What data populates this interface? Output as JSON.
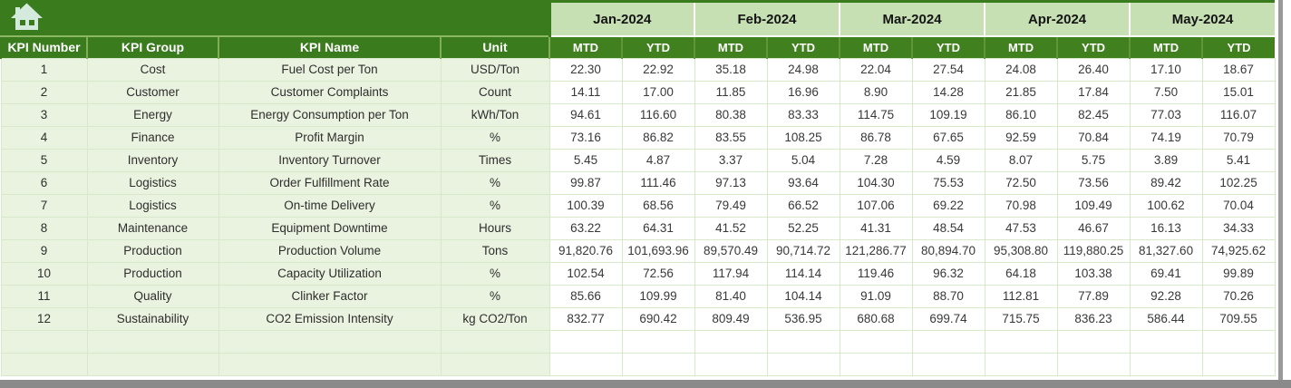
{
  "colors": {
    "header_green": "#3A7B1E",
    "sub_green": "#41801E",
    "month_band_green": "#C6E0B4",
    "row_label_green": "#EAF3E0",
    "grid_green": "#D8E8CB",
    "frame_gray": "#8A8A8A",
    "icon_mint": "#D3EADC"
  },
  "table": {
    "left_headers": [
      "KPI Number",
      "KPI Group",
      "KPI Name",
      "Unit"
    ],
    "months": [
      "Jan-2024",
      "Feb-2024",
      "Mar-2024",
      "Apr-2024",
      "May-2024"
    ],
    "sub_headers": [
      "MTD",
      "YTD"
    ],
    "rows": [
      {
        "number": "1",
        "group": "Cost",
        "name": "Fuel Cost per Ton",
        "unit": "USD/Ton",
        "values": [
          "22.30",
          "22.92",
          "35.18",
          "24.98",
          "22.04",
          "27.54",
          "24.08",
          "26.40",
          "17.10",
          "18.67"
        ]
      },
      {
        "number": "2",
        "group": "Customer",
        "name": "Customer Complaints",
        "unit": "Count",
        "values": [
          "14.11",
          "17.00",
          "11.85",
          "16.96",
          "8.90",
          "14.28",
          "21.85",
          "17.84",
          "7.50",
          "15.01"
        ]
      },
      {
        "number": "3",
        "group": "Energy",
        "name": "Energy Consumption per Ton",
        "unit": "kWh/Ton",
        "values": [
          "94.61",
          "116.60",
          "80.38",
          "83.33",
          "114.75",
          "109.19",
          "86.10",
          "82.45",
          "77.03",
          "116.07"
        ]
      },
      {
        "number": "4",
        "group": "Finance",
        "name": "Profit Margin",
        "unit": "%",
        "values": [
          "73.16",
          "86.82",
          "83.55",
          "108.25",
          "86.78",
          "67.65",
          "92.59",
          "70.84",
          "74.19",
          "70.79"
        ]
      },
      {
        "number": "5",
        "group": "Inventory",
        "name": "Inventory Turnover",
        "unit": "Times",
        "values": [
          "5.45",
          "4.87",
          "3.37",
          "5.04",
          "7.28",
          "4.59",
          "8.07",
          "5.75",
          "3.89",
          "5.41"
        ]
      },
      {
        "number": "6",
        "group": "Logistics",
        "name": "Order Fulfillment Rate",
        "unit": "%",
        "values": [
          "99.87",
          "111.46",
          "97.13",
          "93.64",
          "104.30",
          "75.53",
          "72.50",
          "73.56",
          "89.42",
          "102.25"
        ]
      },
      {
        "number": "7",
        "group": "Logistics",
        "name": "On-time Delivery",
        "unit": "%",
        "values": [
          "100.39",
          "68.56",
          "79.49",
          "66.52",
          "107.06",
          "69.22",
          "70.98",
          "109.49",
          "100.62",
          "70.04"
        ]
      },
      {
        "number": "8",
        "group": "Maintenance",
        "name": "Equipment Downtime",
        "unit": "Hours",
        "values": [
          "63.22",
          "64.31",
          "41.52",
          "52.25",
          "41.31",
          "48.54",
          "47.53",
          "46.67",
          "16.13",
          "34.33"
        ]
      },
      {
        "number": "9",
        "group": "Production",
        "name": "Production Volume",
        "unit": "Tons",
        "values": [
          "91,820.76",
          "101,693.96",
          "89,570.49",
          "90,714.72",
          "121,286.77",
          "80,894.70",
          "95,308.80",
          "119,880.25",
          "81,327.60",
          "74,925.62"
        ]
      },
      {
        "number": "10",
        "group": "Production",
        "name": "Capacity Utilization",
        "unit": "%",
        "values": [
          "102.54",
          "72.56",
          "117.94",
          "114.14",
          "119.46",
          "96.32",
          "64.18",
          "103.38",
          "69.41",
          "99.89"
        ]
      },
      {
        "number": "11",
        "group": "Quality",
        "name": "Clinker Factor",
        "unit": "%",
        "values": [
          "85.66",
          "109.99",
          "81.40",
          "104.14",
          "91.09",
          "88.70",
          "112.81",
          "77.89",
          "92.28",
          "70.26"
        ]
      },
      {
        "number": "12",
        "group": "Sustainability",
        "name": "CO2 Emission Intensity",
        "unit": "kg CO2/Ton",
        "values": [
          "832.77",
          "690.42",
          "809.49",
          "536.95",
          "680.68",
          "699.74",
          "715.75",
          "836.23",
          "586.44",
          "709.55"
        ]
      },
      {
        "number": "",
        "group": "",
        "name": "",
        "unit": "",
        "values": [
          "",
          "",
          "",
          "",
          "",
          "",
          "",
          "",
          "",
          ""
        ]
      },
      {
        "number": "",
        "group": "",
        "name": "",
        "unit": "",
        "values": [
          "",
          "",
          "",
          "",
          "",
          "",
          "",
          "",
          "",
          ""
        ]
      }
    ]
  }
}
